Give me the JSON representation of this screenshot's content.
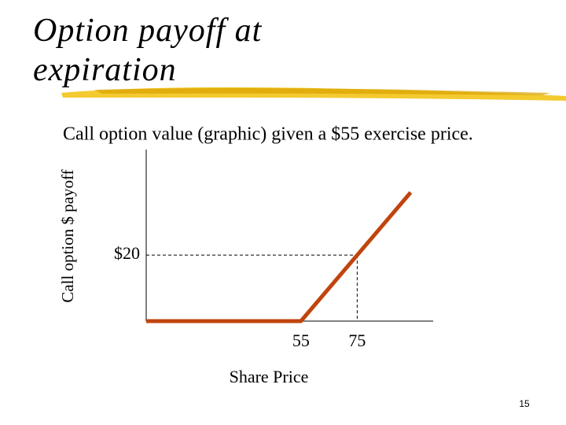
{
  "slide_title": "Option payoff at expiration",
  "slide_number": "15",
  "chart_data": {
    "type": "line",
    "title": "Call option value (graphic) given a $55 exercise price.",
    "ylabel": "Call option $ payoff",
    "xlabel": "Share Price",
    "x": [
      0,
      55,
      94
    ],
    "series": [
      {
        "name": "Call payoff",
        "color": "#c1440e",
        "values": [
          0,
          0,
          39
        ]
      }
    ],
    "xlim": [
      0,
      102
    ],
    "ylim": [
      0,
      52
    ],
    "xticks": [
      55,
      75
    ],
    "yticks": [
      {
        "value": 20,
        "label": "$20"
      }
    ],
    "reference_lines": true
  }
}
